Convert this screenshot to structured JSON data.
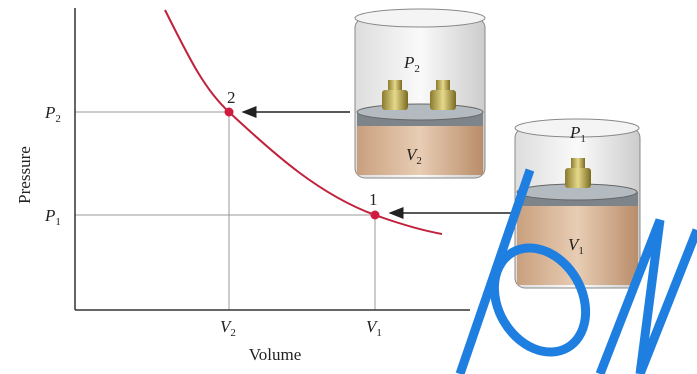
{
  "axes": {
    "y_label": "Pressure",
    "x_label": "Volume",
    "y_ticks": [
      {
        "symbol": "P",
        "subscript": "2"
      },
      {
        "symbol": "P",
        "subscript": "1"
      }
    ],
    "x_ticks": [
      {
        "symbol": "V",
        "subscript": "2"
      },
      {
        "symbol": "V",
        "subscript": "1"
      }
    ]
  },
  "points": [
    {
      "label": "2"
    },
    {
      "label": "1"
    }
  ],
  "containers": [
    {
      "pressure": {
        "symbol": "P",
        "subscript": "2"
      },
      "volume": {
        "symbol": "V",
        "subscript": "2"
      }
    },
    {
      "pressure": {
        "symbol": "P",
        "subscript": "1"
      },
      "volume": {
        "symbol": "V",
        "subscript": "1"
      }
    }
  ]
}
